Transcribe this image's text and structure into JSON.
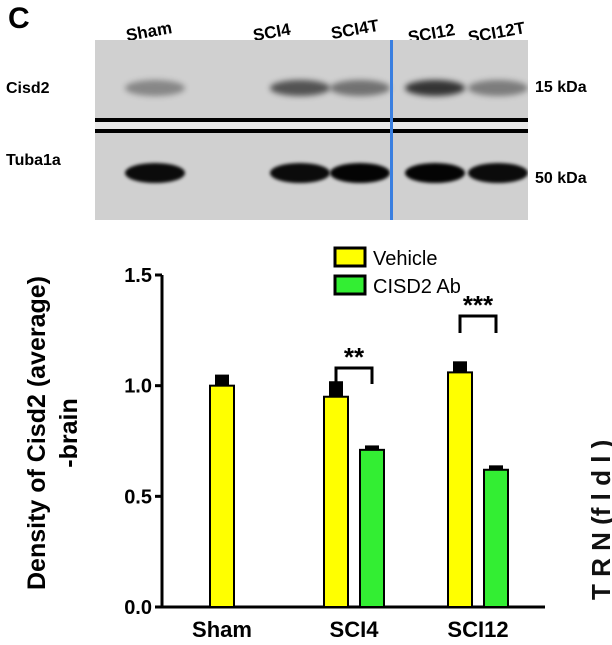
{
  "panel_letter": "C",
  "blot": {
    "lane_labels": [
      "Sham",
      "SCI4",
      "SCI4T",
      "SCI12",
      "SCI12T"
    ],
    "rows": [
      {
        "name": "Cisd2",
        "size": "15 kDa",
        "intensities": [
          0.35,
          0.6,
          0.45,
          0.75,
          0.4
        ]
      },
      {
        "name": "Tuba1a",
        "size": "50 kDa",
        "intensities": [
          0.95,
          0.95,
          0.98,
          0.98,
          0.95
        ]
      }
    ],
    "colors": {
      "background": "#d0d0d0",
      "band": "#000000",
      "separator": "#3a7fe0"
    }
  },
  "chart_data": {
    "type": "bar",
    "categories": [
      "Sham",
      "SCI4",
      "SCI12"
    ],
    "series": [
      {
        "name": "Vehicle",
        "color": "#ffff00",
        "values": [
          1.0,
          0.95,
          1.06
        ],
        "errors": [
          0.05,
          0.07,
          0.05
        ]
      },
      {
        "name": "CISD2 Ab",
        "color": "#33ee33",
        "values": [
          null,
          0.71,
          0.62
        ],
        "errors": [
          null,
          0.02,
          0.02
        ]
      }
    ],
    "ylabel": "Density of Cisd2 (average)\n-brain",
    "ylim": [
      0.0,
      1.5
    ],
    "yticks": [
      "0.0",
      "0.5",
      "1.0",
      "1.5"
    ],
    "legend_position": "top-right",
    "grid": false,
    "significance": [
      {
        "category": "SCI4",
        "label": "**"
      },
      {
        "category": "SCI12",
        "label": "***"
      }
    ]
  },
  "right_edge_text": "T  R N  (f l d l  )"
}
